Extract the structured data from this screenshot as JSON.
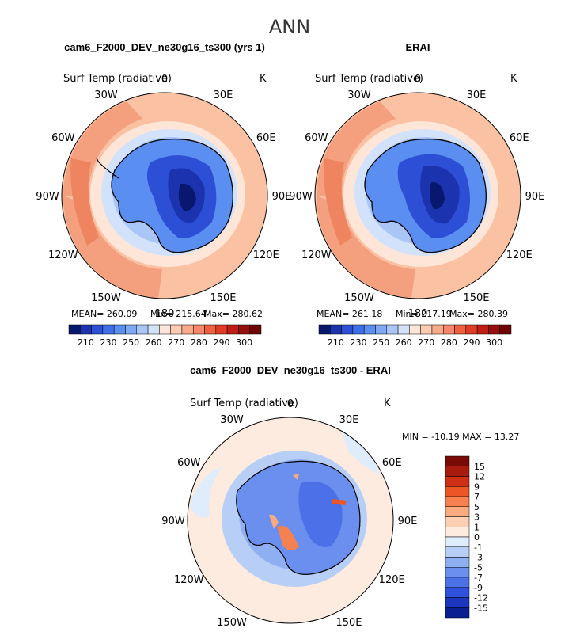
{
  "chart_data": {
    "type": "heatmap",
    "title": "ANN",
    "colors": {
      "abs_colorbar": [
        "#08186e",
        "#1c33b0",
        "#2c4fd6",
        "#3e6ee8",
        "#5a8ef0",
        "#7faaf3",
        "#a9c6f7",
        "#d2e2fb",
        "#fde6d8",
        "#fccbb0",
        "#f9ab8a",
        "#f6876a",
        "#f0603f",
        "#e03b25",
        "#c01e14",
        "#960f0c",
        "#6e0505"
      ],
      "diff_colorbar": [
        "#7a0a06",
        "#a81c0f",
        "#cf2f14",
        "#ee5524",
        "#f78050",
        "#fbab80",
        "#fdd0b4",
        "#fdebdf",
        "#dfecfb",
        "#b7cff6",
        "#8eb0f2",
        "#6b8fee",
        "#4b70e8",
        "#2f52dd",
        "#1b37c0",
        "#0a1f92"
      ],
      "ocean_warm": "#fbc1a3",
      "ocean_warmest": "#f08a66",
      "land_cold": "#2c5ee0"
    },
    "panels": [
      {
        "title": "cam6_F2000_DEV_ne30g16_ts300 (yrs 1)",
        "variable": "Surf Temp (radiative)",
        "units": "K",
        "stats": [
          {
            "label": "MEAN=",
            "value": "260.09"
          },
          {
            "label": "Min=",
            "value": "215.64"
          },
          {
            "label": "Max=",
            "value": "280.62"
          }
        ],
        "colorbar_ticks": [
          "210",
          "230",
          "250",
          "260",
          "270",
          "280",
          "290",
          "300"
        ]
      },
      {
        "title": "ERAI",
        "variable": "Surf Temp (radiative)",
        "units": "K",
        "stats": [
          {
            "label": "MEAN=",
            "value": "261.18"
          },
          {
            "label": "Min=",
            "value": "217.19"
          },
          {
            "label": "Max=",
            "value": "280.39"
          }
        ],
        "colorbar_ticks": [
          "210",
          "230",
          "250",
          "260",
          "270",
          "280",
          "290",
          "300"
        ]
      },
      {
        "title": "cam6_F2000_DEV_ne30g16_ts300 - ERAI",
        "variable": "Surf Temp (radiative)",
        "units": "K",
        "minmax": "MIN = -10.19 MAX =   13.27",
        "colorbar_ticks": [
          "15",
          "12",
          "9",
          "7",
          "5",
          "3",
          "1",
          "0",
          "-1",
          "-3",
          "-5",
          "-7",
          "-9",
          "-12",
          "-15"
        ]
      }
    ],
    "longitude_labels": [
      "0",
      "30E",
      "60E",
      "90E",
      "120E",
      "150E",
      "180",
      "150W",
      "120W",
      "90W",
      "60W",
      "30W"
    ]
  }
}
